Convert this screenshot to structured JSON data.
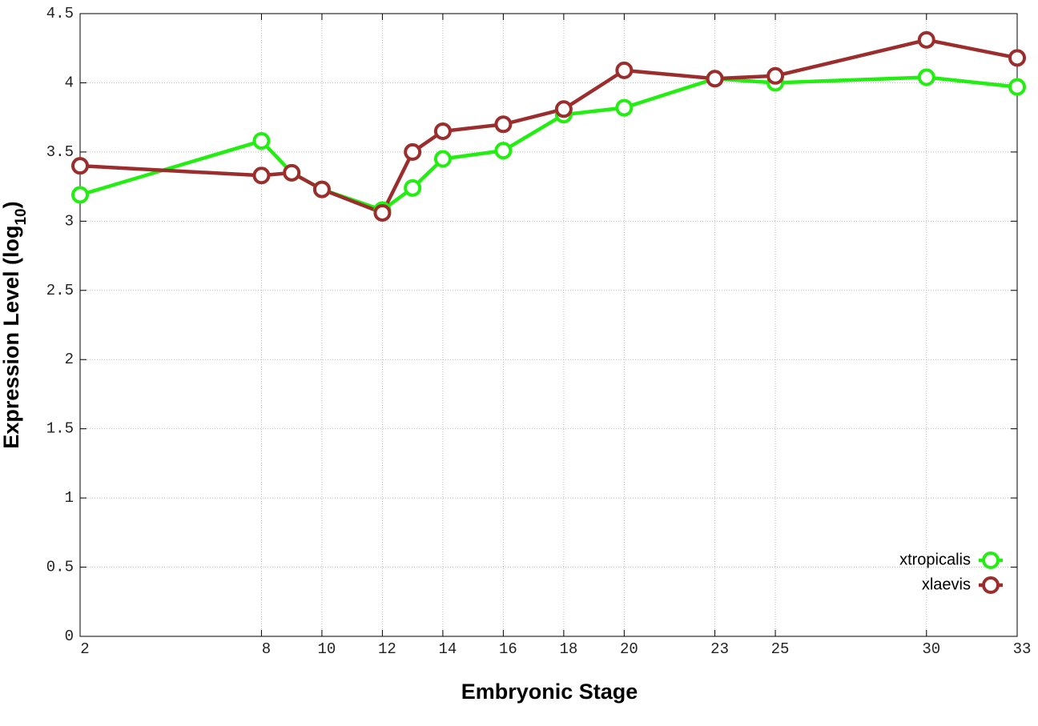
{
  "chart_data": {
    "type": "line",
    "x_label": "Embryonic Stage",
    "y_label": "Expression Level (log10)",
    "x": [
      2,
      8,
      9,
      10,
      12,
      13,
      14,
      16,
      18,
      20,
      23,
      25,
      30,
      33
    ],
    "series": [
      {
        "name": "xtropicalis",
        "color": "#22ee11",
        "values": [
          3.19,
          3.58,
          3.35,
          3.23,
          3.08,
          3.24,
          3.45,
          3.51,
          3.77,
          3.82,
          4.03,
          4.0,
          4.04,
          3.97
        ]
      },
      {
        "name": "xlaevis",
        "color": "#9b2d2d",
        "values": [
          3.4,
          3.33,
          3.35,
          3.23,
          3.06,
          3.5,
          3.65,
          3.7,
          3.81,
          4.09,
          4.03,
          4.05,
          4.31,
          4.18
        ]
      }
    ],
    "xlim": [
      2,
      33
    ],
    "xticks": [
      2,
      8,
      10,
      12,
      14,
      16,
      18,
      20,
      23,
      25,
      30,
      33
    ],
    "ylim": [
      0,
      4.5
    ],
    "yticks": [
      0,
      0.5,
      1,
      1.5,
      2,
      2.5,
      3,
      3.5,
      4,
      4.5
    ],
    "grid": true,
    "legend": "lower right"
  }
}
